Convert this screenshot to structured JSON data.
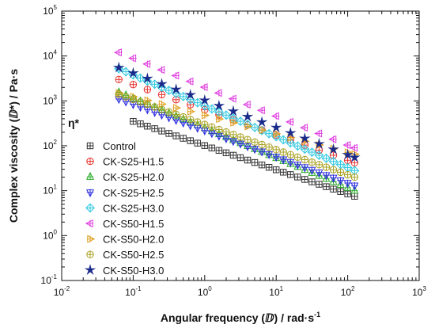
{
  "chart_data": {
    "type": "scatter",
    "xlabel": "Angular  frequency (ⅅ) / rad·s",
    "xlabel_sup": "-1",
    "ylabel": "Complex viscosity (ⅅ*) / Pa·s",
    "xscale": "log",
    "yscale": "log",
    "xlim": [
      0.01,
      1000
    ],
    "ylim": [
      0.1,
      100000
    ],
    "x_ticks": [
      {
        "base": "10",
        "exp": "-2",
        "value": 0.01
      },
      {
        "base": "10",
        "exp": "-1",
        "value": 0.1
      },
      {
        "base": "10",
        "exp": "0",
        "value": 1
      },
      {
        "base": "10",
        "exp": "1",
        "value": 10
      },
      {
        "base": "10",
        "exp": "2",
        "value": 100
      },
      {
        "base": "10",
        "exp": "3",
        "value": 1000
      }
    ],
    "y_ticks": [
      {
        "base": "10",
        "exp": "-1",
        "value": 0.1
      },
      {
        "base": "10",
        "exp": "0",
        "value": 1
      },
      {
        "base": "10",
        "exp": "1",
        "value": 10
      },
      {
        "base": "10",
        "exp": "2",
        "value": 100
      },
      {
        "base": "10",
        "exp": "3",
        "value": 1000
      },
      {
        "base": "10",
        "exp": "4",
        "value": 10000
      },
      {
        "base": "10",
        "exp": "5",
        "value": 100000
      }
    ],
    "legend_title": "η*",
    "legend_position": "lower-left",
    "grid": false,
    "x_fine": [
      0.063,
      0.1,
      0.158,
      0.251,
      0.398,
      0.631,
      1,
      1.585,
      2.512,
      3.981,
      6.31,
      10,
      15.85,
      25.12,
      39.81,
      63.1,
      100,
      125
    ],
    "x_coarse": [
      0.063,
      0.079,
      0.1,
      0.126,
      0.158,
      0.2,
      0.251,
      0.316,
      0.398,
      0.501,
      0.631,
      0.794,
      1,
      1.259,
      1.585,
      1.995,
      2.512,
      3.162,
      3.981,
      5.012,
      6.31,
      7.943,
      10,
      12.59,
      15.85,
      19.95,
      25.12,
      31.62,
      39.81,
      50.12,
      63.1,
      79.43,
      100,
      125
    ],
    "series": [
      {
        "name": "Control",
        "marker": "square",
        "color": "#333333",
        "x_start": 0.1,
        "x_end": 125,
        "y_start": 350,
        "y_end": 7.5,
        "x_grid": "coarse"
      },
      {
        "name": "CK-S25-H1.5",
        "marker": "circle",
        "color": "#e8322e",
        "x_start": 0.063,
        "x_end": 125,
        "y_start": 3000,
        "y_end": 42,
        "x_grid": "fine"
      },
      {
        "name": "CK-S25-H2.0",
        "marker": "triangle-up",
        "color": "#2fae2f",
        "x_start": 0.063,
        "x_end": 125,
        "y_start": 1550,
        "y_end": 10,
        "x_grid": "coarse"
      },
      {
        "name": "CK-S25-H2.5",
        "marker": "triangle-down",
        "color": "#2f2fe0",
        "x_start": 0.063,
        "x_end": 125,
        "y_start": 1100,
        "y_end": 13,
        "x_grid": "coarse"
      },
      {
        "name": "CK-S25-H3.0",
        "marker": "diamond",
        "color": "#26c6e0",
        "x_start": 0.063,
        "x_end": 125,
        "y_start": 5200,
        "y_end": 28,
        "x_grid": "coarse"
      },
      {
        "name": "CK-S50-H1.5",
        "marker": "triangle-left",
        "color": "#e040e0",
        "x_start": 0.063,
        "x_end": 125,
        "y_start": 12000,
        "y_end": 90,
        "x_grid": "fine"
      },
      {
        "name": "CK-S50-H2.0",
        "marker": "triangle-right",
        "color": "#e0a020",
        "x_start": 0.063,
        "x_end": 125,
        "y_start": 1500,
        "y_end": 65,
        "x_grid": "fine"
      },
      {
        "name": "CK-S50-H2.5",
        "marker": "circle-plus",
        "color": "#a8a020",
        "x_start": 0.063,
        "x_end": 125,
        "y_start": 1400,
        "y_end": 20,
        "x_grid": "coarse"
      },
      {
        "name": "CK-S50-H3.0",
        "marker": "star",
        "color": "#1a2a8a",
        "x_start": 0.063,
        "x_end": 125,
        "y_start": 5500,
        "y_end": 55,
        "x_grid": "fine"
      }
    ]
  }
}
